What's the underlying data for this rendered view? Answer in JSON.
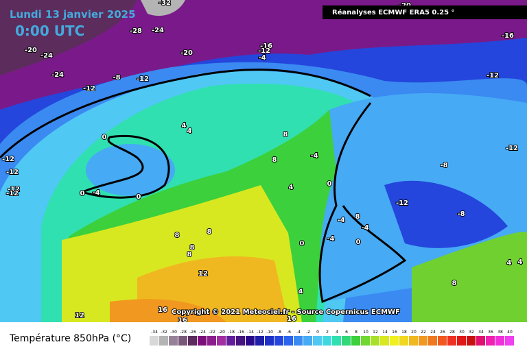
{
  "header": {
    "date": "Lundi 13 janvier 2025",
    "time": "0:00 UTC",
    "source": "Réanalyses ECMWF ERA5 0.25 °",
    "copyright": "Copyright © 2021 Meteociel.fr - Source Copernicus ECMWF"
  },
  "map_labels": [
    "-32",
    "-20",
    "-28",
    "-24",
    "-20",
    "-24",
    "-20",
    "-16",
    "-12",
    "-4",
    "-24",
    "-8",
    "-12",
    "-12",
    "-16",
    "-12",
    "-12",
    "-12",
    "-12",
    "0",
    "4",
    "4",
    "8",
    "8",
    "-4",
    "0",
    "4",
    "-12",
    "-4",
    "8",
    "-4",
    "0",
    "-4",
    "0",
    "0",
    "-4",
    "0",
    "-8",
    "-8",
    "-12",
    "-12",
    "4",
    "4",
    "8",
    "8",
    "8",
    "8",
    "12",
    "12",
    "16",
    "16",
    "16",
    "4",
    "8"
  ],
  "legend": {
    "title": "Température 850hPa (°C)",
    "ticks": [
      -34,
      -32,
      -30,
      -28,
      -26,
      -24,
      -22,
      -20,
      -18,
      -16,
      -14,
      -12,
      -10,
      -8,
      -6,
      -4,
      -2,
      0,
      2,
      4,
      6,
      8,
      10,
      12,
      14,
      16,
      18,
      20,
      22,
      24,
      26,
      28,
      30,
      32,
      34,
      36,
      38,
      40
    ],
    "colors": [
      "#d8d8d8",
      "#b4b4b4",
      "#968296",
      "#7a587a",
      "#5c2c5c",
      "#7a0f7a",
      "#8c1e8c",
      "#a22ea2",
      "#621e9a",
      "#46147e",
      "#2a0a8a",
      "#1e1ea8",
      "#1e32c8",
      "#2446dc",
      "#2c64ee",
      "#3a8af2",
      "#46aaf4",
      "#50c8f4",
      "#40d8e0",
      "#30e0b0",
      "#30d878",
      "#3cd03c",
      "#70d830",
      "#a8e028",
      "#d8e820",
      "#f0f020",
      "#f0d820",
      "#f0b820",
      "#f09820",
      "#f07820",
      "#f05820",
      "#f03020",
      "#e01818",
      "#c81010",
      "#e01070",
      "#f020b0",
      "#f030d8",
      "#f040f0"
    ]
  }
}
